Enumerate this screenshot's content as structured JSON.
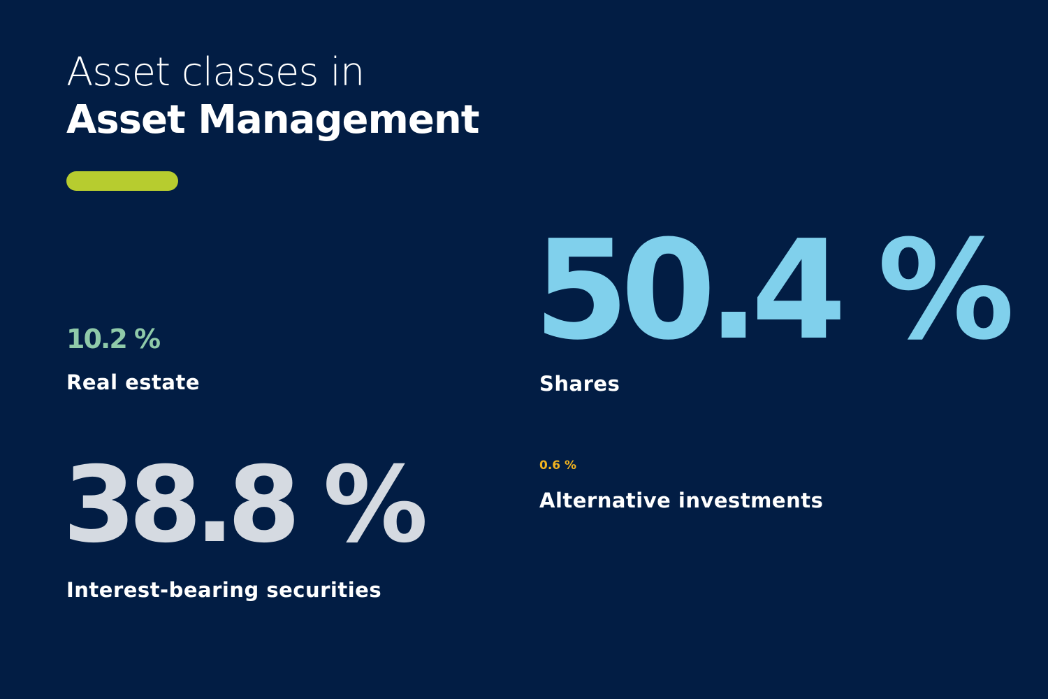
{
  "header": {
    "title_line1": "Asset classes in",
    "title_line2": "Asset Management"
  },
  "items": [
    {
      "value": "10.2 %",
      "label": "Real estate"
    },
    {
      "value": "50.4 %",
      "label": "Shares"
    },
    {
      "value": "38.8 %",
      "label": "Interest-bearing securities"
    },
    {
      "value": "0.6 %",
      "label": "Alternative investments"
    }
  ]
}
